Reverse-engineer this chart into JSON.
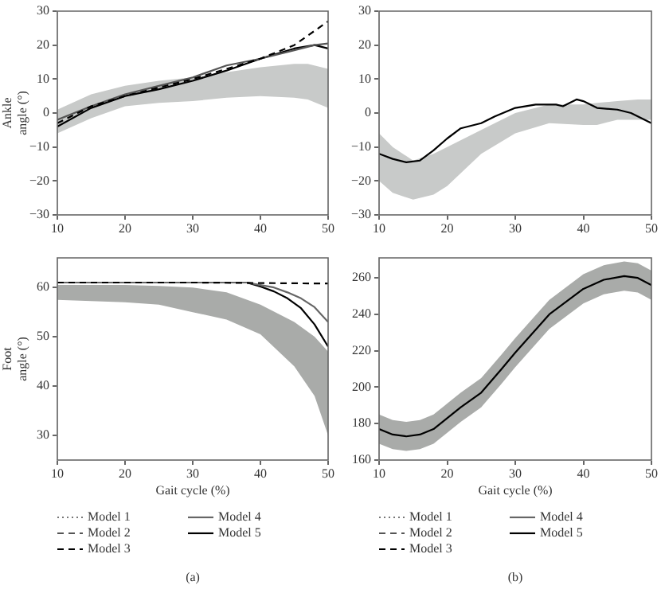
{
  "chart_data": [
    {
      "type": "line",
      "ylabel": "Ankle angle (°)",
      "xlim": [
        10,
        50
      ],
      "xticks": [
        10,
        20,
        30,
        40,
        50
      ],
      "ylim": [
        -30,
        30
      ],
      "yticks": [
        -30,
        -20,
        -10,
        0,
        10,
        20,
        30
      ],
      "grid": false,
      "legend": false,
      "series": [
        {
          "type": "area",
          "color": "#c8cac9",
          "x": [
            10,
            15,
            20,
            25,
            30,
            35,
            40,
            45,
            47,
            50
          ],
          "values": [
            null,
            null,
            null,
            null,
            null,
            null,
            null,
            null,
            null,
            null
          ],
          "lower": [
            -6,
            -1.5,
            2,
            3,
            3.5,
            4.5,
            5,
            4.5,
            4,
            1.5
          ],
          "upper": [
            1,
            5.5,
            8,
            9.5,
            10.5,
            12,
            13.5,
            14.5,
            14.5,
            13
          ]
        },
        {
          "color": "#000000",
          "line_style": "dashed",
          "x": [
            10,
            15,
            20,
            25,
            30,
            35,
            40,
            45,
            50
          ],
          "values": [
            -3,
            2,
            5,
            7.5,
            10,
            13,
            16,
            20,
            27
          ]
        },
        {
          "color": "#555555",
          "line_style": "solid",
          "x": [
            10,
            15,
            20,
            25,
            30,
            35,
            40,
            45,
            48,
            50
          ],
          "values": [
            -2,
            2,
            5.5,
            8,
            10.5,
            14,
            16,
            18.5,
            20,
            20.5
          ]
        },
        {
          "color": "#000000",
          "line_style": "solid",
          "x": [
            10,
            15,
            20,
            25,
            30,
            35,
            40,
            45,
            48,
            50
          ],
          "values": [
            -4,
            1.5,
            5,
            7,
            9.5,
            12.5,
            16,
            19,
            20,
            19
          ]
        }
      ]
    },
    {
      "type": "line",
      "xlim": [
        10,
        50
      ],
      "xticks": [
        10,
        20,
        30,
        40,
        50
      ],
      "ylim": [
        -30,
        30
      ],
      "yticks": [
        -30,
        -20,
        -10,
        0,
        10,
        20,
        30
      ],
      "grid": false,
      "legend": false,
      "series": [
        {
          "type": "area",
          "color": "#c8cac9",
          "x": [
            10,
            12,
            15,
            18,
            20,
            25,
            30,
            35,
            40,
            42,
            45,
            48,
            50
          ],
          "values": [
            null,
            null,
            null,
            null,
            null,
            null,
            null,
            null,
            null,
            null,
            null,
            null,
            null
          ],
          "lower": [
            -20,
            -23.5,
            -25.5,
            -24,
            -21.5,
            -12,
            -6,
            -3,
            -3.5,
            -3.5,
            -2,
            -2,
            -2
          ],
          "upper": [
            -6,
            -10,
            -14,
            -12,
            -10,
            -5,
            0,
            2.5,
            2.5,
            3,
            3.5,
            4,
            4
          ]
        },
        {
          "color": "#000000",
          "line_style": "solid",
          "x": [
            10,
            12,
            14,
            16,
            18,
            20,
            22,
            25,
            27,
            30,
            33,
            36,
            37,
            39,
            40,
            42,
            45,
            47,
            50
          ],
          "values": [
            -12,
            -13.5,
            -14.5,
            -14,
            -11,
            -7.5,
            -4.5,
            -3,
            -1,
            1.5,
            2.5,
            2.5,
            2,
            4,
            3.5,
            1.5,
            1,
            0,
            -3
          ]
        }
      ]
    },
    {
      "type": "line",
      "xlabel": "Gait cycle (%)",
      "ylabel": "Foot angle (°)",
      "xlim": [
        10,
        50
      ],
      "xticks": [
        10,
        20,
        30,
        40,
        50
      ],
      "ylim": [
        25,
        66
      ],
      "yticks": [
        30,
        40,
        50,
        60
      ],
      "grid": false,
      "legend": "bottom",
      "annotations": [
        "(a)"
      ],
      "series": [
        {
          "type": "area",
          "color": "#a9aba9",
          "x": [
            10,
            20,
            25,
            30,
            35,
            40,
            45,
            48,
            50
          ],
          "values": [
            null,
            null,
            null,
            null,
            null,
            null,
            null,
            null,
            null
          ],
          "lower": [
            57.5,
            57,
            56.5,
            55,
            53.5,
            50.5,
            44,
            38,
            30
          ],
          "upper": [
            60.5,
            60.5,
            60.3,
            60,
            59,
            56.5,
            53,
            50,
            47
          ]
        },
        {
          "name": "Model 1",
          "color": "#777777",
          "line_style": "dotted"
        },
        {
          "name": "Model 2",
          "color": "#555555",
          "line_style": "dashed"
        },
        {
          "name": "Model 3",
          "color": "#000000",
          "line_style": "dashed",
          "x": [
            10,
            30,
            50
          ],
          "values": [
            61,
            61,
            60.8
          ]
        },
        {
          "name": "Model 4",
          "color": "#666666",
          "line_style": "solid",
          "x": [
            10,
            15,
            20,
            25,
            30,
            35,
            38,
            40,
            42,
            44,
            46,
            48,
            50
          ],
          "values": [
            61,
            61,
            61,
            61,
            61,
            61,
            61,
            60.5,
            60,
            59,
            57.8,
            56,
            53
          ]
        },
        {
          "name": "Model 5",
          "color": "#000000",
          "line_style": "solid",
          "x": [
            10,
            15,
            20,
            25,
            30,
            35,
            38,
            40,
            42,
            44,
            46,
            48,
            50
          ],
          "values": [
            61,
            61,
            61,
            61,
            61,
            61,
            61,
            60.2,
            59.2,
            57.8,
            55.8,
            52.5,
            48
          ]
        }
      ]
    },
    {
      "type": "line",
      "xlabel": "Gait cycle (%)",
      "xlim": [
        10,
        50
      ],
      "xticks": [
        10,
        20,
        30,
        40,
        50
      ],
      "ylim": [
        160,
        271
      ],
      "yticks": [
        160,
        180,
        200,
        220,
        240,
        260
      ],
      "grid": false,
      "legend": "bottom",
      "annotations": [
        "(b)"
      ],
      "series": [
        {
          "type": "area",
          "color": "#a9aba9",
          "x": [
            10,
            12,
            14,
            16,
            18,
            20,
            22,
            25,
            28,
            30,
            35,
            40,
            43,
            46,
            48,
            50
          ],
          "values": [
            null,
            null,
            null,
            null,
            null,
            null,
            null,
            null,
            null,
            null,
            null,
            null,
            null,
            null,
            null,
            null
          ],
          "lower": [
            169,
            166,
            165,
            166,
            169,
            175,
            181,
            189,
            202,
            211,
            232,
            246,
            251,
            253,
            252,
            248
          ],
          "upper": [
            185,
            182,
            181,
            182,
            185,
            191,
            197,
            205,
            218,
            227,
            248,
            262,
            267,
            269,
            268,
            264
          ]
        },
        {
          "name": "Model 1",
          "color": "#777777",
          "line_style": "dotted"
        },
        {
          "name": "Model 2",
          "color": "#555555",
          "line_style": "dashed"
        },
        {
          "name": "Model 3",
          "color": "#000000",
          "line_style": "dashed"
        },
        {
          "name": "Model 4",
          "color": "#666666",
          "line_style": "solid"
        },
        {
          "name": "Model 5",
          "color": "#000000",
          "line_style": "solid",
          "x": [
            10,
            12,
            14,
            16,
            18,
            20,
            22,
            25,
            28,
            30,
            35,
            40,
            43,
            46,
            48,
            50
          ],
          "values": [
            177,
            174,
            173,
            174,
            177,
            183,
            189,
            197,
            210,
            219,
            240,
            254,
            259,
            261,
            260,
            256
          ]
        }
      ]
    }
  ]
}
